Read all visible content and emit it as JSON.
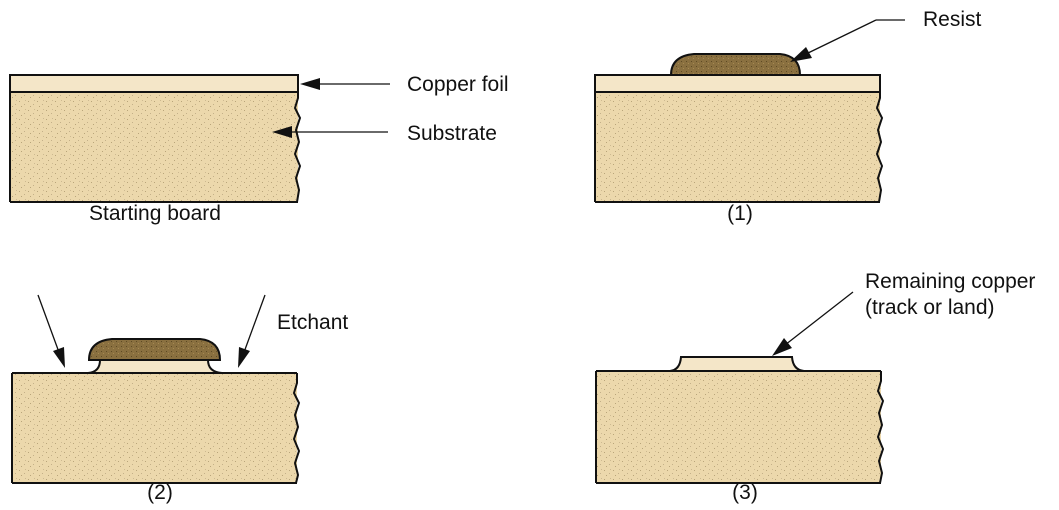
{
  "panels": {
    "starting": {
      "caption": "Starting board",
      "labels": {
        "copper_foil": "Copper foil",
        "substrate": "Substrate"
      }
    },
    "step1": {
      "caption": "(1)",
      "labels": {
        "resist": "Resist"
      }
    },
    "step2": {
      "caption": "(2)",
      "labels": {
        "etchant": "Etchant"
      }
    },
    "step3": {
      "caption": "(3)",
      "labels": {
        "remaining_copper_line1": "Remaining copper",
        "remaining_copper_line2": "(track or land)"
      }
    }
  },
  "colors": {
    "substrate": "#ecd8ac",
    "copper_foil": "#f4e6c8",
    "resist": "#8a7040",
    "outline": "#111111"
  }
}
